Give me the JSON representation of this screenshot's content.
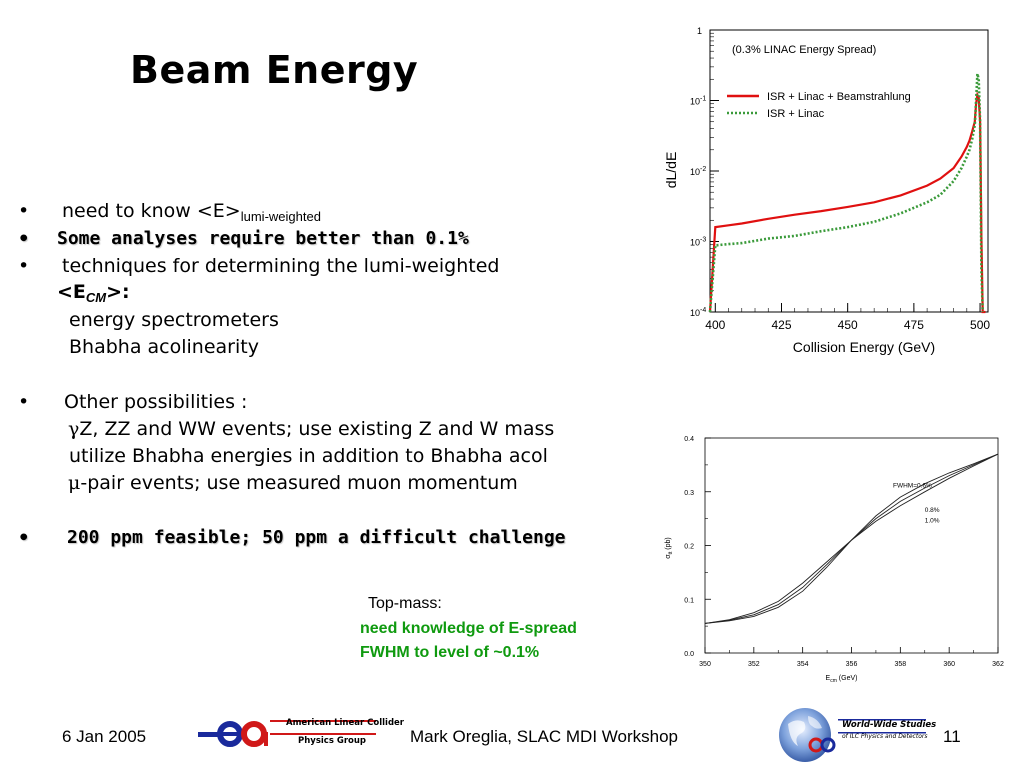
{
  "slide": {
    "title": "Beam Energy",
    "bullets": {
      "b1_text": "need to know <E>",
      "b1_sub": "lumi-weighted",
      "b2_text": "Some analyses require better than 0.1%",
      "b3_text": "techniques for determining the lumi-weighted",
      "b3_cont": "<E",
      "b3_sub": "CM",
      "b3_end": ">:",
      "b3_item1": "energy spectrometers",
      "b3_item2": "Bhabha acolinearity",
      "b4_text": "Other possibilities :",
      "b4_item1_sym": "γ",
      "b4_item1": "Z, ZZ and WW events; use existing Z and W mass",
      "b4_item2": "utilize Bhabha energies in addition to Bhabha acol",
      "b4_item3_sym": "μ",
      "b4_item3": "-pair events; use measured muon momentum",
      "b5_text": "200 ppm feasible; 50 ppm a difficult challenge",
      "bullet_glyph": "•"
    },
    "topmass": {
      "label": "Top-mass:",
      "line1": "need knowledge of E-spread",
      "line2": "FWHM to level of ~0.1%"
    },
    "footer": {
      "date": "6 Jan 2005",
      "center": "Mark Oreglia, SLAC MDI Workshop",
      "page": "11",
      "logo_left_line1": "American Linear Collider",
      "logo_left_line2": "Physics Group",
      "logo_right_line1": "World-Wide Studies",
      "logo_right_line2": "of ILC Physics and Detectors"
    },
    "colors": {
      "bullet2_text": "#000000",
      "bullet5_text": "#000000",
      "green": "#0f9a0f",
      "red_series": "#e01010",
      "green_series": "#3a9a3a"
    }
  },
  "chart_data": [
    {
      "type": "line",
      "title": "(0.3% LINAC Energy Spread)",
      "xlabel": "Collision Energy (GeV)",
      "ylabel": "dL/dE",
      "xlim": [
        398,
        503
      ],
      "ylim": [
        0.0001,
        1
      ],
      "yscale": "log",
      "xticks": [
        "400",
        "425",
        "450",
        "475",
        "500"
      ],
      "yticks": [
        "10^-4",
        "10^-3",
        "10^-2",
        "10^-1",
        "1"
      ],
      "legend_position": "top-right",
      "series": [
        {
          "name": "ISR + Linac + Beamstrahlung",
          "color": "#e01010",
          "style": "solid",
          "x": [
            398,
            400,
            405,
            410,
            420,
            430,
            440,
            450,
            460,
            470,
            480,
            485,
            490,
            493,
            495,
            496,
            497,
            498,
            498.5,
            499,
            499.5,
            500,
            500.5,
            501,
            501.5,
            502
          ],
          "y": [
            8e-05,
            0.0016,
            0.0017,
            0.0018,
            0.0021,
            0.0024,
            0.0027,
            0.0031,
            0.0036,
            0.0045,
            0.0062,
            0.0078,
            0.011,
            0.016,
            0.022,
            0.027,
            0.036,
            0.05,
            0.09,
            0.12,
            0.11,
            0.05,
            0.0012,
            0.0001,
            0.0001,
            0.0001
          ]
        },
        {
          "name": "ISR + Linac",
          "color": "#3a9a3a",
          "style": "dotted",
          "x": [
            398,
            400,
            405,
            410,
            420,
            430,
            440,
            450,
            460,
            470,
            480,
            485,
            490,
            493,
            495,
            496,
            497,
            498,
            498.5,
            499,
            499.5,
            500,
            500.5,
            501
          ],
          "y": [
            8e-05,
            0.00088,
            0.00092,
            0.00095,
            0.0011,
            0.0012,
            0.0014,
            0.0016,
            0.0019,
            0.0025,
            0.0036,
            0.0046,
            0.0072,
            0.011,
            0.016,
            0.02,
            0.028,
            0.045,
            0.1,
            0.24,
            0.2,
            0.05,
            0.0004,
            0.0001
          ]
        }
      ]
    },
    {
      "type": "line",
      "title": "",
      "xlabel": "E_cm (GeV)",
      "ylabel": "σ_tt (pb)",
      "xlim": [
        350,
        362
      ],
      "ylim": [
        0,
        0.4
      ],
      "xticks": [
        "350",
        "352",
        "354",
        "356",
        "358",
        "360",
        "362"
      ],
      "yticks": [
        "0.0",
        "0.1",
        "0.2",
        "0.3",
        "0.4"
      ],
      "annotations": [
        "FWHM=0.6%",
        "0.8%",
        "1.0%"
      ],
      "series": [
        {
          "name": "FWHM=0.6%",
          "x": [
            350,
            351,
            352,
            353,
            354,
            355,
            356,
            357,
            358,
            359,
            360,
            361,
            362
          ],
          "y": [
            0.055,
            0.06,
            0.068,
            0.085,
            0.115,
            0.16,
            0.21,
            0.255,
            0.29,
            0.315,
            0.335,
            0.352,
            0.37
          ]
        },
        {
          "name": "0.8%",
          "x": [
            350,
            351,
            352,
            353,
            354,
            355,
            356,
            357,
            358,
            359,
            360,
            361,
            362
          ],
          "y": [
            0.055,
            0.061,
            0.071,
            0.09,
            0.122,
            0.165,
            0.21,
            0.25,
            0.282,
            0.307,
            0.33,
            0.35,
            0.37
          ]
        },
        {
          "name": "1.0%",
          "x": [
            350,
            351,
            352,
            353,
            354,
            355,
            356,
            357,
            358,
            359,
            360,
            361,
            362
          ],
          "y": [
            0.055,
            0.062,
            0.075,
            0.096,
            0.13,
            0.17,
            0.21,
            0.245,
            0.274,
            0.3,
            0.325,
            0.348,
            0.37
          ]
        }
      ]
    }
  ]
}
